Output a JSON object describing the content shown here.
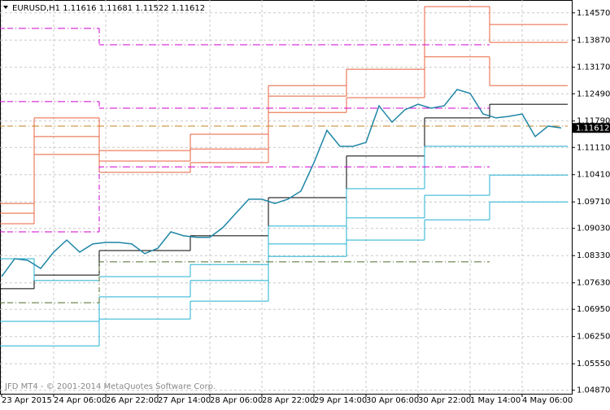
{
  "chart_data": {
    "type": "line",
    "title": "EURUSD,H1  1.11616 1.11681 1.11522 1.11612",
    "watermark": "JFD MT4 - © 2001-2014 MetaQuotes Software Corp.",
    "categories": [
      "23 Apr 2015",
      null,
      null,
      null,
      "24 Apr 06:00",
      null,
      null,
      null,
      "26 Apr 22:00",
      null,
      null,
      null,
      "27 Apr 14:00",
      null,
      null,
      null,
      "28 Apr 06:00",
      null,
      null,
      null,
      "28 Apr 22:00",
      null,
      null,
      null,
      "29 Apr 14:00",
      null,
      null,
      null,
      "30 Apr 06:00",
      null,
      null,
      null,
      "30 Apr 22:00",
      null,
      null,
      null,
      "1 May 14:00",
      null,
      null,
      null,
      "4 May 06:00",
      null,
      null,
      null
    ],
    "ylim": [
      1.0478,
      1.149
    ],
    "yticks": [
      {
        "value": 1.1457,
        "label": "1.14570"
      },
      {
        "value": 1.1387,
        "label": "1.13870"
      },
      {
        "value": 1.1317,
        "label": "1.13170"
      },
      {
        "value": 1.1249,
        "label": "1.12490"
      },
      {
        "value": 1.1179,
        "label": "1.11790"
      },
      {
        "value": 1.1111,
        "label": "1.11110"
      },
      {
        "value": 1.1041,
        "label": "1.10410"
      },
      {
        "value": 1.0971,
        "label": "1.09710"
      },
      {
        "value": 1.0903,
        "label": "1.09030"
      },
      {
        "value": 1.0833,
        "label": "1.08330"
      },
      {
        "value": 1.0763,
        "label": "1.07630"
      },
      {
        "value": 1.0695,
        "label": "1.06950"
      },
      {
        "value": 1.0625,
        "label": "1.06250"
      },
      {
        "value": 1.0555,
        "label": "1.05550"
      },
      {
        "value": 1.0487,
        "label": "1.04870"
      }
    ],
    "grid": true,
    "last_price": 1.11612,
    "series": [
      {
        "color": "#1f86a6",
        "style": "line",
        "values": [
          1.0779,
          1.0825,
          1.0821,
          1.08,
          1.0842,
          1.0873,
          1.0842,
          1.0863,
          1.0867,
          1.0867,
          1.0863,
          1.0838,
          1.0852,
          1.0894,
          1.0884,
          1.088,
          1.088,
          1.0905,
          1.0942,
          1.0978,
          1.0978,
          1.0967,
          1.0978,
          1.0999,
          1.1072,
          1.1155,
          1.1114,
          1.1114,
          1.1124,
          1.1218,
          1.1176,
          1.1208,
          1.1222,
          1.1212,
          1.1218,
          1.126,
          1.125,
          1.1197,
          1.1187,
          1.1191,
          1.1197,
          1.1139,
          1.1166,
          1.11612
        ]
      },
      {
        "color": "#000000",
        "style": "step",
        "values": [
          1.0748,
          1.0748,
          1.0748,
          1.0783,
          1.0783,
          1.0783,
          1.0783,
          1.0783,
          1.0846,
          1.0846,
          1.0846,
          1.0846,
          1.0846,
          1.0846,
          1.0846,
          1.0884,
          1.0884,
          1.0884,
          1.0884,
          1.0884,
          1.0884,
          1.0982,
          1.0982,
          1.0982,
          1.0982,
          1.0982,
          1.0982,
          1.1089,
          1.1089,
          1.1089,
          1.1089,
          1.1089,
          1.1089,
          1.1187,
          1.1187,
          1.1187,
          1.1187,
          1.1187,
          1.1222,
          1.1222,
          1.1222,
          1.1222,
          1.1222,
          1.1222
        ]
      },
      {
        "color": "#e8603c",
        "style": "step",
        "values": [
          1.0967,
          1.0967,
          1.0967,
          1.1187,
          1.1187,
          1.1187,
          1.1187,
          1.1187,
          1.1103,
          1.1103,
          1.1103,
          1.1103,
          1.1103,
          1.1103,
          1.1103,
          1.1145,
          1.1145,
          1.1145,
          1.1145,
          1.1145,
          1.1145,
          1.127,
          1.127,
          1.127,
          1.127,
          1.127,
          1.127,
          null,
          null,
          null,
          null,
          null,
          null,
          null,
          null,
          null,
          null,
          null,
          1.1427,
          1.1427,
          1.1427,
          1.1427,
          1.1427,
          1.1427
        ]
      },
      {
        "color": "#e8603c",
        "style": "step",
        "values": [
          1.0942,
          1.0942,
          1.0942,
          1.1139,
          1.1139,
          1.1139,
          1.1139,
          1.1139,
          1.1076,
          1.1076,
          1.1076,
          1.1076,
          1.1076,
          1.1076,
          1.1076,
          1.1107,
          1.1107,
          1.1107,
          1.1107,
          1.1107,
          1.1107,
          1.1243,
          1.1243,
          1.1243,
          1.1243,
          1.1243,
          1.1243,
          1.1312,
          1.1312,
          1.1312,
          1.1312,
          1.1312,
          1.1312,
          1.1473,
          1.1473,
          1.1473,
          1.1473,
          1.1473,
          1.1381,
          1.1381,
          1.1381,
          1.1381,
          1.1381,
          1.1381
        ]
      },
      {
        "color": "#e8603c",
        "style": "step",
        "values": [
          1.0915,
          1.0915,
          1.0915,
          1.1093,
          1.1093,
          1.1093,
          1.1093,
          1.1093,
          1.1047,
          1.1047,
          1.1047,
          1.1047,
          1.1047,
          1.1047,
          1.1047,
          1.1072,
          1.1072,
          1.1072,
          1.1072,
          1.1072,
          1.1072,
          1.1201,
          1.1201,
          1.1201,
          1.1201,
          1.1201,
          1.1201,
          1.1239,
          1.1239,
          1.1239,
          1.1239,
          1.1239,
          1.1239,
          1.1344,
          1.1344,
          1.1344,
          1.1344,
          1.1344,
          1.127,
          1.127,
          1.127,
          1.127,
          1.127,
          1.127
        ]
      },
      {
        "color": "#20b0d0",
        "style": "step",
        "values": [
          1.0825,
          1.0825,
          1.0825,
          1.0769,
          1.0769,
          1.0769,
          1.0769,
          1.0769,
          1.0779,
          1.0779,
          1.0779,
          1.0779,
          1.0779,
          1.0779,
          1.0779,
          1.081,
          1.081,
          1.081,
          1.081,
          1.081,
          1.081,
          1.0909,
          1.0909,
          1.0909,
          1.0909,
          1.0909,
          1.0909,
          1.1005,
          1.1005,
          1.1005,
          1.1005,
          1.1005,
          1.1005,
          1.1114,
          1.1114,
          1.1114,
          1.1114,
          1.1114,
          1.1114,
          1.1114,
          1.1114,
          1.1114,
          1.1114,
          1.1114
        ]
      },
      {
        "color": "#20b0d0",
        "style": "step",
        "values": [
          1.0664,
          1.0664,
          1.0664,
          1.0664,
          1.0664,
          1.0664,
          1.0664,
          1.0664,
          1.0727,
          1.0727,
          1.0727,
          1.0727,
          1.0727,
          1.0727,
          1.0727,
          1.0769,
          1.0769,
          1.0769,
          1.0769,
          1.0769,
          1.0769,
          1.0863,
          1.0863,
          1.0863,
          1.0863,
          1.0863,
          1.0863,
          1.093,
          1.093,
          1.093,
          1.093,
          1.093,
          1.093,
          1.0988,
          1.0988,
          1.0988,
          1.0988,
          1.0988,
          1.104,
          1.104,
          1.104,
          1.104,
          1.104,
          1.104
        ]
      },
      {
        "color": "#20b0d0",
        "style": "step",
        "values": [
          1.0601,
          1.0601,
          1.0601,
          1.0601,
          1.0601,
          1.0601,
          1.0601,
          1.0601,
          1.067,
          1.067,
          1.067,
          1.067,
          1.067,
          1.067,
          1.067,
          1.0716,
          1.0716,
          1.0716,
          1.0716,
          1.0716,
          1.0716,
          1.0831,
          1.0831,
          1.0831,
          1.0831,
          1.0831,
          1.0831,
          1.0873,
          1.0873,
          1.0873,
          1.0873,
          1.0873,
          1.0873,
          1.0925,
          1.0925,
          1.0925,
          1.0925,
          1.0925,
          1.0971,
          1.0971,
          1.0971,
          1.0971,
          1.0971,
          1.0971
        ]
      },
      {
        "color": "#d000d0",
        "style": "dash",
        "values": [
          1.1417,
          1.1417,
          1.1417,
          1.1417,
          1.1417,
          1.1417,
          1.1417,
          1.1417,
          1.1375,
          1.1375,
          1.1375,
          1.1375,
          1.1375,
          1.1375,
          1.1375,
          1.1375,
          1.1375,
          1.1375,
          1.1375,
          1.1375,
          1.1375,
          1.1375,
          1.1375,
          1.1375,
          1.1375,
          1.1375,
          1.1375,
          1.1375,
          1.1375,
          1.1375,
          1.1375,
          1.1375,
          1.1375,
          1.1375,
          1.1375,
          1.1375,
          1.1375,
          1.1375,
          null,
          null,
          null,
          null,
          null,
          null
        ]
      },
      {
        "color": "#d000d0",
        "style": "dash",
        "values": [
          1.1229,
          1.1229,
          1.1229,
          1.1229,
          1.1229,
          1.1229,
          1.1229,
          1.1229,
          1.1212,
          1.1212,
          1.1212,
          1.1212,
          1.1212,
          1.1212,
          1.1212,
          1.1212,
          1.1212,
          1.1212,
          1.1212,
          1.1212,
          1.1212,
          1.1212,
          1.1212,
          1.1212,
          1.1212,
          1.1212,
          1.1212,
          1.1212,
          1.1212,
          1.1212,
          1.1212,
          1.1212,
          1.1212,
          1.1212,
          1.1212,
          1.1212,
          1.1212,
          1.1212,
          null,
          null,
          null,
          null,
          null,
          null
        ]
      },
      {
        "color": "#d000d0",
        "style": "dash",
        "values": [
          1.0894,
          1.0894,
          1.0894,
          1.0894,
          1.0894,
          1.0894,
          1.0894,
          1.0894,
          1.1061,
          1.1061,
          1.1061,
          1.1061,
          1.1061,
          1.1061,
          1.1061,
          1.1061,
          1.1061,
          1.1061,
          1.1061,
          1.1061,
          1.1061,
          1.1061,
          1.1061,
          1.1061,
          1.1061,
          1.1061,
          1.1061,
          1.1061,
          1.1061,
          1.1061,
          1.1061,
          1.1061,
          1.1061,
          1.1061,
          1.1061,
          1.1061,
          1.1061,
          1.1061,
          null,
          null,
          null,
          null,
          null,
          null
        ]
      },
      {
        "color": "#4f6b2a",
        "style": "dash",
        "values": [
          1.0712,
          1.0712,
          1.0712,
          1.0712,
          1.0712,
          1.0712,
          1.0712,
          1.0712,
          1.0817,
          1.0817,
          1.0817,
          1.0817,
          1.0817,
          1.0817,
          1.0817,
          1.0817,
          1.0817,
          1.0817,
          1.0817,
          1.0817,
          1.0817,
          1.0817,
          1.0817,
          1.0817,
          1.0817,
          1.0817,
          1.0817,
          1.0817,
          1.0817,
          1.0817,
          1.0817,
          1.0817,
          1.0817,
          1.0817,
          1.0817,
          1.0817,
          1.0817,
          1.0817,
          null,
          null,
          null,
          null,
          null,
          null
        ]
      },
      {
        "color": "#c08020",
        "style": "dash",
        "values": [
          1.1166,
          1.1166,
          1.1166,
          1.1166,
          1.1166,
          1.1166,
          1.1166,
          1.1166,
          1.1166,
          1.1166,
          1.1166,
          1.1166,
          1.1166,
          1.1166,
          1.1166,
          1.1166,
          1.1166,
          1.1166,
          1.1166,
          1.1166,
          1.1166,
          1.1166,
          1.1166,
          1.1166,
          1.1166,
          1.1166,
          1.1166,
          1.1166,
          1.1166,
          1.1166,
          1.1166,
          1.1166,
          1.1166,
          1.1166,
          1.1166,
          1.1166,
          1.1166,
          1.1166,
          1.1166,
          1.1166,
          1.1166,
          1.1166,
          1.1166,
          1.1166
        ]
      }
    ]
  }
}
